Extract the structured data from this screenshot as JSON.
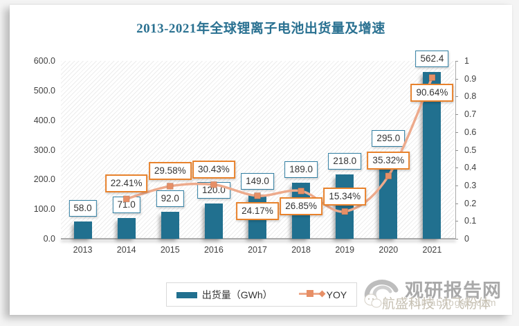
{
  "title": "2013-2021年全球锂离子电池出货量及增速",
  "chart_data": {
    "type": "bar",
    "categories": [
      "2013",
      "2014",
      "2015",
      "2016",
      "2017",
      "2018",
      "2019",
      "2020",
      "2021"
    ],
    "series": [
      {
        "name": "出货量（GWh）",
        "type": "bar",
        "axis": "left",
        "values": [
          58.0,
          71.0,
          92.0,
          120.0,
          149.0,
          189.0,
          218.0,
          295.0,
          562.4
        ],
        "labels": [
          "58.0",
          "71.0",
          "92.0",
          "120.0",
          "149.0",
          "189.0",
          "218.0",
          "295.0",
          "562.4"
        ]
      },
      {
        "name": "YOY",
        "type": "line",
        "axis": "right",
        "values": [
          null,
          0.2241,
          0.2958,
          0.3043,
          0.2417,
          0.2685,
          0.1534,
          0.3532,
          0.9064
        ],
        "labels": [
          null,
          "22.41%",
          "29.58%",
          "30.43%",
          "24.17%",
          "26.85%",
          "15.34%",
          "35.32%",
          "90.64%"
        ],
        "label_side": [
          null,
          "above",
          "above",
          "above",
          "below",
          "below",
          "above",
          "above",
          "below"
        ]
      }
    ],
    "left_axis": {
      "min": 0,
      "max": 600,
      "tick_labels": [
        "600.0",
        "500.0",
        "400.0",
        "300.0",
        "200.0",
        "100.0",
        "0.0"
      ]
    },
    "right_axis": {
      "min": 0,
      "max": 1,
      "tick_labels": [
        "1",
        "0.9",
        "0.8",
        "0.7",
        "0.6",
        "0.5",
        "0.4",
        "0.3",
        "0.2",
        "0.1",
        "0"
      ]
    },
    "grid": false,
    "legend_position": "bottom"
  },
  "colors": {
    "bar": "#21708f",
    "bar_label_border": "#2f7da1",
    "line": "#edaa8c",
    "marker": "#e78f66",
    "yoy_label_border": "#e8822c",
    "title": "#2a7191",
    "axis_text": "#3f3f3f"
  },
  "legend": {
    "items": [
      {
        "label": "出货量（GWh）",
        "swatch": "bar"
      },
      {
        "label": "YOY",
        "swatch": "line"
      }
    ]
  },
  "watermark": {
    "brand": "观研报告网",
    "url": "chinabaogao.com",
    "overlay_text": "航盛科技 沈飞粉体"
  }
}
